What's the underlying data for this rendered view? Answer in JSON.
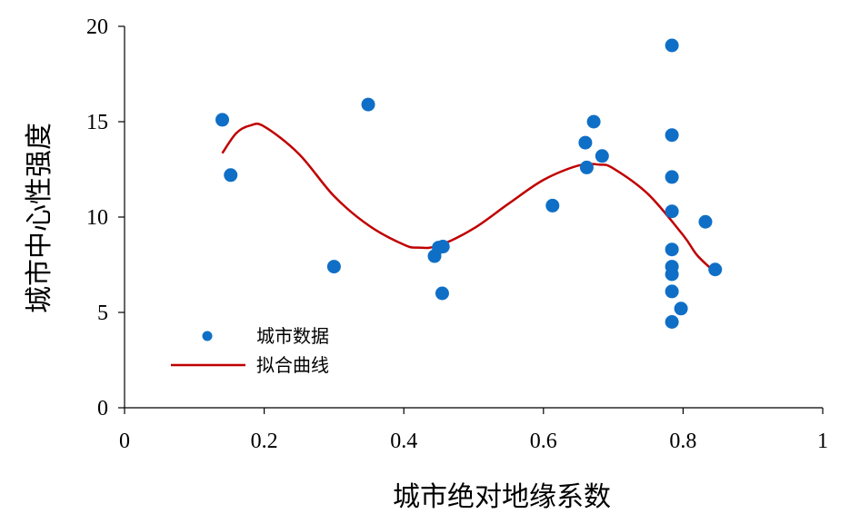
{
  "chart_data": {
    "type": "scatter",
    "xlabel": "城市绝对地缘系数",
    "ylabel": "城市中心性强度",
    "xlim": [
      0,
      1
    ],
    "ylim": [
      0,
      20
    ],
    "x_ticks": [
      "0",
      "0.2",
      "0.4",
      "0.6",
      "0.8",
      "1"
    ],
    "y_ticks": [
      "0",
      "5",
      "10",
      "15",
      "20"
    ],
    "grid": false,
    "legend_position": "bottom-left",
    "series": [
      {
        "name": "城市数据",
        "kind": "scatter",
        "color": "#0f6fc6",
        "points": [
          [
            0.14,
            15.1
          ],
          [
            0.152,
            12.2
          ],
          [
            0.3,
            7.4
          ],
          [
            0.349,
            15.9
          ],
          [
            0.444,
            7.95
          ],
          [
            0.45,
            8.4
          ],
          [
            0.456,
            8.45
          ],
          [
            0.455,
            6.0
          ],
          [
            0.613,
            10.6
          ],
          [
            0.66,
            13.9
          ],
          [
            0.662,
            12.6
          ],
          [
            0.672,
            15.0
          ],
          [
            0.684,
            13.2
          ],
          [
            0.784,
            19.0
          ],
          [
            0.784,
            14.3
          ],
          [
            0.784,
            12.1
          ],
          [
            0.784,
            10.3
          ],
          [
            0.784,
            8.3
          ],
          [
            0.784,
            7.4
          ],
          [
            0.784,
            7.0
          ],
          [
            0.784,
            6.1
          ],
          [
            0.784,
            4.5
          ],
          [
            0.797,
            5.2
          ],
          [
            0.832,
            9.75
          ],
          [
            0.846,
            7.25
          ]
        ]
      },
      {
        "name": "拟合曲线",
        "kind": "line",
        "color": "#c00000",
        "points": [
          [
            0.14,
            13.35
          ],
          [
            0.16,
            14.4
          ],
          [
            0.18,
            14.8
          ],
          [
            0.2,
            14.75
          ],
          [
            0.25,
            13.3
          ],
          [
            0.3,
            11.1
          ],
          [
            0.35,
            9.55
          ],
          [
            0.4,
            8.55
          ],
          [
            0.42,
            8.4
          ],
          [
            0.45,
            8.5
          ],
          [
            0.5,
            9.4
          ],
          [
            0.55,
            10.7
          ],
          [
            0.6,
            11.95
          ],
          [
            0.65,
            12.7
          ],
          [
            0.68,
            12.75
          ],
          [
            0.7,
            12.55
          ],
          [
            0.75,
            11.2
          ],
          [
            0.8,
            9.05
          ],
          [
            0.82,
            8.0
          ],
          [
            0.846,
            7.1
          ]
        ]
      }
    ]
  }
}
